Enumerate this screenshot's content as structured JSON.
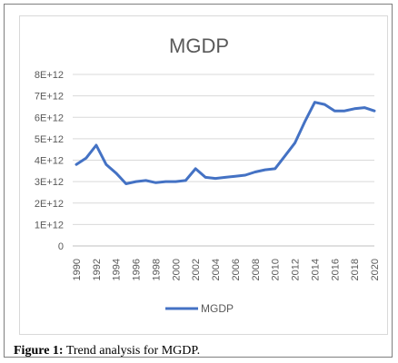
{
  "caption": {
    "label": "Figure 1:",
    "text": " Trend analysis for MGDP."
  },
  "chart_data": {
    "type": "line",
    "title": "MGDP",
    "xlabel": "",
    "ylabel": "",
    "ylim": [
      0,
      8000000000000.0
    ],
    "y_ticks": [
      0,
      1000000000000.0,
      2000000000000.0,
      3000000000000.0,
      4000000000000.0,
      5000000000000.0,
      6000000000000.0,
      7000000000000.0,
      8000000000000.0
    ],
    "y_tick_labels": [
      "0",
      "1E+12",
      "2E+12",
      "3E+12",
      "4E+12",
      "5E+12",
      "6E+12",
      "7E+12",
      "8E+12"
    ],
    "x_tick_labels": [
      "1990",
      "1992",
      "1994",
      "1996",
      "1998",
      "2000",
      "2002",
      "2004",
      "2006",
      "2008",
      "2010",
      "2012",
      "2014",
      "2016",
      "2018",
      "2020"
    ],
    "grid": true,
    "legend": "bottom",
    "color": "#4472c4",
    "x": [
      1990,
      1991,
      1992,
      1993,
      1994,
      1995,
      1996,
      1997,
      1998,
      1999,
      2000,
      2001,
      2002,
      2003,
      2004,
      2005,
      2006,
      2007,
      2008,
      2009,
      2010,
      2011,
      2012,
      2013,
      2014,
      2015,
      2016,
      2017,
      2018,
      2019,
      2020
    ],
    "series": [
      {
        "name": "MGDP",
        "values": [
          3800000000000.0,
          4100000000000.0,
          4700000000000.0,
          3800000000000.0,
          3400000000000.0,
          2900000000000.0,
          3000000000000.0,
          3050000000000.0,
          2950000000000.0,
          3000000000000.0,
          3000000000000.0,
          3050000000000.0,
          3600000000000.0,
          3200000000000.0,
          3150000000000.0,
          3200000000000.0,
          3250000000000.0,
          3300000000000.0,
          3450000000000.0,
          3550000000000.0,
          3600000000000.0,
          4200000000000.0,
          4800000000000.0,
          5800000000000.0,
          6700000000000.0,
          6600000000000.0,
          6300000000000.0,
          6300000000000.0,
          6400000000000.0,
          6450000000000.0,
          6300000000000.0
        ]
      }
    ]
  }
}
